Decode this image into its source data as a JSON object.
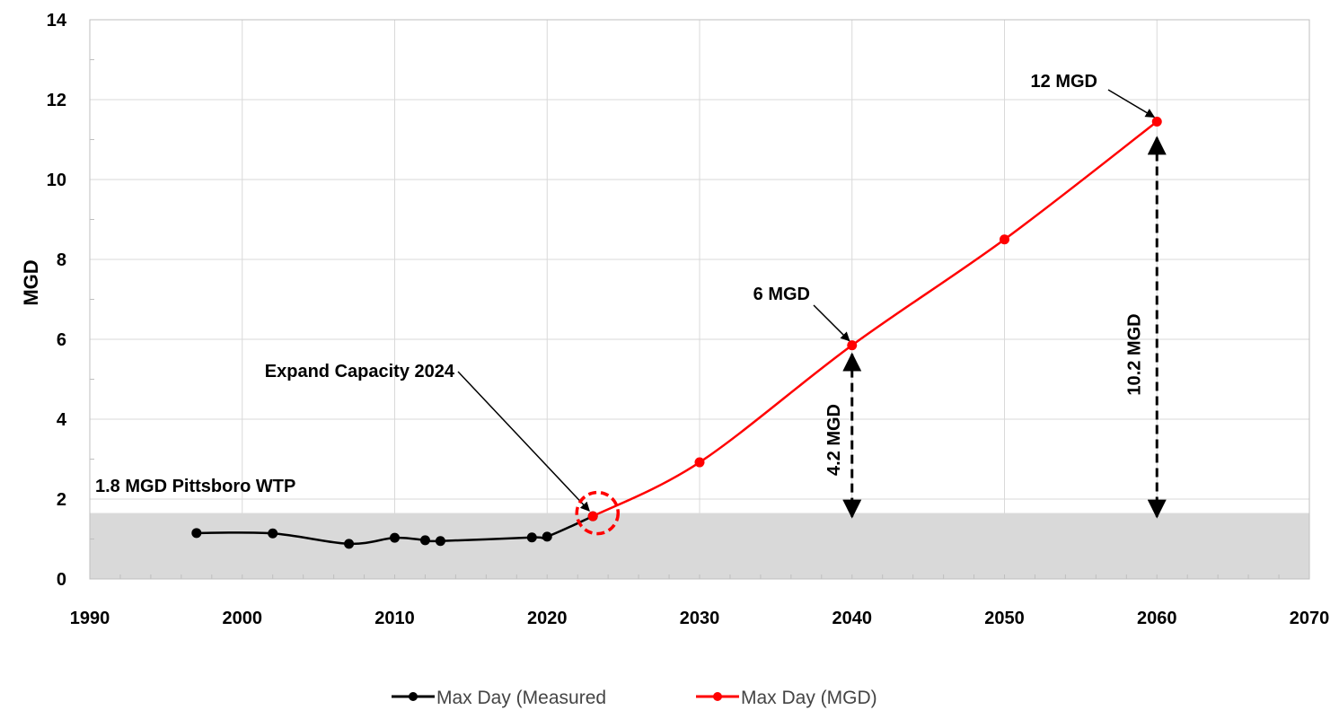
{
  "chart_data": {
    "type": "line",
    "xlim": [
      1990,
      2070
    ],
    "ylim": [
      0,
      14
    ],
    "xticks": [
      1990,
      2000,
      2010,
      2020,
      2030,
      2040,
      2050,
      2060,
      2070
    ],
    "yticks": [
      0,
      2,
      4,
      6,
      8,
      10,
      12,
      14
    ],
    "ylabel": "MGD",
    "xlabel": "",
    "grid": true,
    "legend_position": "bottom",
    "capacity_band": {
      "label": "1.8 MGD Pittsboro WTP",
      "ymax": 1.65,
      "color": "#d9d9d9"
    },
    "series": [
      {
        "name": "Max Day (Measured",
        "color": "#000000",
        "x": [
          1997,
          2002,
          2007,
          2010,
          2012,
          2013,
          2019,
          2020,
          2023
        ],
        "y": [
          1.15,
          1.14,
          0.88,
          1.03,
          0.97,
          0.95,
          1.04,
          1.06,
          1.57
        ]
      },
      {
        "name": "Max Day (MGD)",
        "color": "#ff0000",
        "x": [
          2023,
          2030,
          2040,
          2050,
          2060
        ],
        "y": [
          1.57,
          2.92,
          5.85,
          8.5,
          11.45
        ]
      }
    ],
    "annotations": {
      "expand": "Expand Capacity 2024",
      "mgd6": "6 MGD",
      "mgd12": "12 MGD",
      "gap2040": "4.2 MGD",
      "gap2060": "10.2 MGD"
    }
  }
}
